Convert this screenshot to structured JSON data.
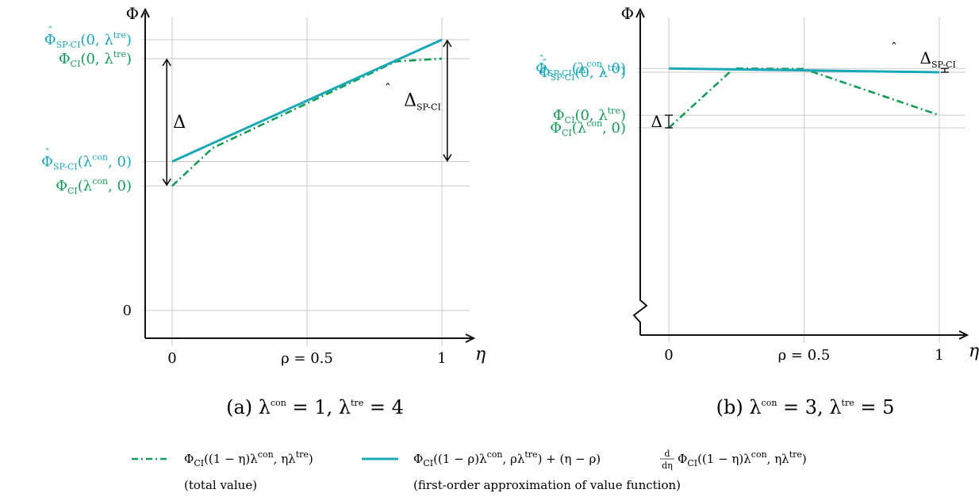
{
  "colors": {
    "total": "#159c58",
    "approx": "#1aa7b8",
    "grid": "#c8c8c8",
    "axis": "#111111"
  },
  "chart_data": [
    {
      "type": "line",
      "caption": {
        "prefix": "(a) ",
        "sym1": "λ",
        "sup1": "con",
        "val1": " = 1,  ",
        "sym2": "λ",
        "sup2": "tre",
        "val2": " = 4"
      },
      "xlabel": "η",
      "ylabel": "Φ",
      "xlim": [
        0,
        1
      ],
      "x_ticks": [
        {
          "x": 0,
          "label": "0"
        },
        {
          "x": 0.5,
          "label": "ρ = 0.5"
        },
        {
          "x": 1,
          "label": "1"
        }
      ],
      "rho": 0.5,
      "grid": true,
      "axis_break": false,
      "ylim": [
        -0.1,
        1.08
      ],
      "y_ticks": [
        {
          "y": 0,
          "color": "axis",
          "main": "0"
        },
        {
          "y": 0.46,
          "color": "total",
          "main": "Φ",
          "hat": false,
          "sub": "CI",
          "arg": "(λ",
          "argsup": "con",
          "tail": ", 0)"
        },
        {
          "y": 0.55,
          "color": "approx",
          "main": "Φ",
          "hat": true,
          "sub": "SP-CI",
          "arg": "(λ",
          "argsup": "con",
          "tail": ", 0)"
        },
        {
          "y": 0.93,
          "color": "total",
          "main": "Φ",
          "hat": false,
          "sub": "CI",
          "arg": "(0, λ",
          "argsup": "tre",
          "tail": ")"
        },
        {
          "y": 1.0,
          "color": "approx",
          "main": "Φ",
          "hat": true,
          "sub": "SP-CI",
          "arg": "(0, λ",
          "argsup": "tre",
          "tail": ")"
        }
      ],
      "series": [
        {
          "label": "total",
          "color": "total",
          "style": "dashdot",
          "x": [
            0,
            0.15,
            0.83,
            1
          ],
          "y": [
            0.46,
            0.6,
            0.92,
            0.93
          ]
        },
        {
          "label": "approx",
          "color": "approx",
          "style": "solid",
          "x": [
            0,
            1
          ],
          "y": [
            0.55,
            1.0
          ]
        }
      ],
      "annotations": [
        {
          "kind": "delta",
          "x": -0.02,
          "y0": 0.46,
          "y1": 0.93,
          "text": "Δ",
          "hat": false,
          "sub": "",
          "side": "right"
        },
        {
          "kind": "delta",
          "x": 1.02,
          "y0": 0.55,
          "y1": 1.0,
          "text": "Δ",
          "hat": true,
          "sub": "SP-CI",
          "side": "left"
        }
      ]
    },
    {
      "type": "line",
      "caption": {
        "prefix": "(b) ",
        "sym1": "λ",
        "sup1": "con",
        "val1": " = 3,  ",
        "sym2": "λ",
        "sup2": "tre",
        "val2": " = 5"
      },
      "xlabel": "η",
      "ylabel": "Φ",
      "xlim": [
        0,
        1
      ],
      "x_ticks": [
        {
          "x": 0,
          "label": "0"
        },
        {
          "x": 0.5,
          "label": "ρ = 0.5"
        },
        {
          "x": 1,
          "label": "1"
        }
      ],
      "rho": 0.5,
      "grid": true,
      "axis_break": true,
      "ylim": [
        0,
        1.06
      ],
      "y_ticks": [
        {
          "y": 0.73,
          "color": "total",
          "main": "Φ",
          "hat": false,
          "sub": "CI",
          "arg": "(λ",
          "argsup": "con",
          "tail": ", 0)"
        },
        {
          "y": 0.78,
          "color": "total",
          "main": "Φ",
          "hat": false,
          "sub": "CI",
          "arg": "(0, λ",
          "argsup": "tre",
          "tail": ")"
        },
        {
          "y": 0.95,
          "color": "approx",
          "main": "Φ",
          "hat": true,
          "sub": "SP-CI",
          "arg": "(0, λ",
          "argsup": "tre",
          "tail": ")"
        },
        {
          "y": 0.965,
          "color": "approx",
          "main": "Φ",
          "hat": true,
          "sub": "SP-CI",
          "arg": "(λ",
          "argsup": "con",
          "tail": ", 0)"
        }
      ],
      "series": [
        {
          "label": "total",
          "color": "total",
          "style": "dashdot",
          "x": [
            0,
            0.24,
            0.5,
            1
          ],
          "y": [
            0.73,
            0.965,
            0.963,
            0.78
          ]
        },
        {
          "label": "approx",
          "color": "approx",
          "style": "solid",
          "x": [
            0,
            1
          ],
          "y": [
            0.965,
            0.95
          ]
        }
      ],
      "annotations": [
        {
          "kind": "delta-small",
          "x": 0,
          "y0": 0.73,
          "y1": 0.78,
          "text": "Δ",
          "hat": false,
          "sub": "",
          "side": "left"
        },
        {
          "kind": "delta-small",
          "x": 1.02,
          "y0": 0.95,
          "y1": 0.965,
          "text": "Δ",
          "hat": true,
          "sub": "SP-CI",
          "side": "above"
        }
      ]
    }
  ],
  "legend": {
    "total": {
      "text1": "Φ",
      "sub1": "CI",
      "text2": "((1 − η)λ",
      "sup2": "con",
      "text3": ", ηλ",
      "sup3": "tre",
      "text4": ")",
      "desc": "(total value)"
    },
    "approx": {
      "p1": "Φ",
      "s1": "CI",
      "p2": "((1 − ρ)λ",
      "u2": "con",
      "p3": ", ρλ",
      "u3": "tre",
      "p4": ") + (η − ρ)",
      "frac_num": "d",
      "frac_den": "dη",
      "p5": "Φ",
      "s5": "CI",
      "p6": "((1 − η)λ",
      "u6": "con",
      "p7": ", ηλ",
      "u7": "tre",
      "p8": ")",
      "desc": "(first-order approximation of value function)"
    }
  }
}
